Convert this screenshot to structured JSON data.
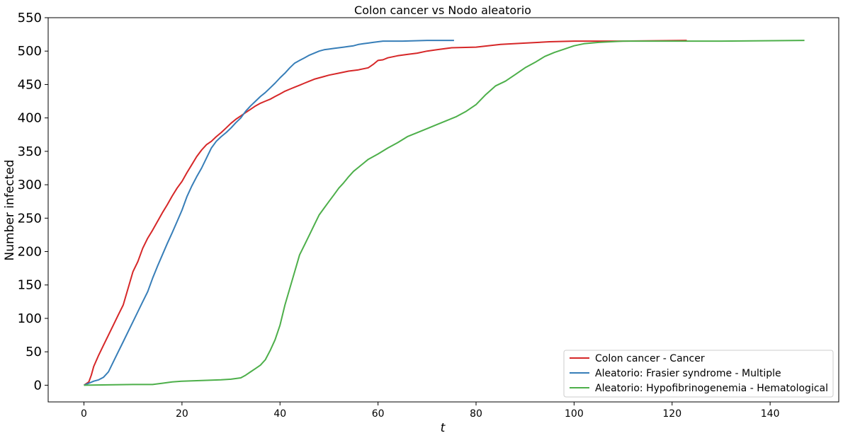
{
  "chart_data": {
    "type": "line",
    "title": "Colon cancer vs Nodo aleatorio",
    "xlabel": "t",
    "ylabel": "Number infected",
    "xlim": [
      -7.3,
      154
    ],
    "ylim": [
      -25,
      550
    ],
    "xticks": [
      0,
      20,
      40,
      60,
      80,
      100,
      120,
      140
    ],
    "yticks": [
      0,
      50,
      100,
      150,
      200,
      250,
      300,
      350,
      400,
      450,
      500,
      550
    ],
    "grid": false,
    "legend_position": "bottom-right",
    "series": [
      {
        "name": "Colon cancer - Cancer",
        "color": "#d62728",
        "x": [
          0,
          1,
          1.5,
          2,
          3,
          4,
          5,
          6,
          7,
          8,
          9,
          10,
          11,
          12,
          13,
          14,
          15,
          16,
          17,
          18,
          19,
          20,
          21,
          22,
          23,
          24,
          25,
          26,
          27,
          28,
          29,
          30,
          31,
          32,
          33,
          34,
          35,
          36,
          37,
          38,
          39,
          40,
          41,
          42,
          43,
          44,
          45,
          46,
          47,
          48,
          49,
          50,
          52,
          54,
          56,
          58,
          59,
          60,
          61,
          62,
          64,
          66,
          68,
          70,
          72,
          75,
          80,
          85,
          90,
          95,
          100,
          110,
          123
        ],
        "y": [
          0,
          5,
          15,
          28,
          45,
          60,
          75,
          90,
          105,
          120,
          145,
          170,
          185,
          205,
          220,
          232,
          245,
          258,
          270,
          283,
          295,
          305,
          318,
          330,
          342,
          352,
          360,
          365,
          372,
          378,
          385,
          392,
          398,
          403,
          408,
          413,
          418,
          422,
          425,
          428,
          432,
          436,
          440,
          443,
          446,
          449,
          452,
          455,
          458,
          460,
          462,
          464,
          467,
          470,
          472,
          475,
          480,
          486,
          487,
          490,
          493,
          495,
          497,
          500,
          502,
          505,
          506,
          510,
          512,
          514,
          515,
          515,
          516
        ]
      },
      {
        "name": "Aleatorio: Frasier syndrome - Multiple",
        "color": "#377eb8",
        "x": [
          0,
          1,
          2,
          3,
          4,
          5,
          6,
          7,
          8,
          9,
          10,
          11,
          12,
          13,
          14,
          15,
          16,
          17,
          18,
          19,
          20,
          21,
          22,
          23,
          24,
          25,
          26,
          27,
          28,
          29,
          30,
          31,
          32,
          33,
          34,
          35,
          36,
          37,
          38,
          39,
          40,
          41,
          42,
          43,
          44,
          45,
          46,
          47,
          48,
          49,
          50,
          51,
          52,
          53,
          54,
          55,
          56,
          57,
          58,
          59,
          60,
          61,
          65,
          70,
          75.5
        ],
        "y": [
          0,
          3,
          6,
          8,
          12,
          20,
          35,
          50,
          65,
          80,
          95,
          110,
          125,
          140,
          160,
          178,
          195,
          212,
          228,
          245,
          262,
          282,
          298,
          312,
          325,
          340,
          355,
          365,
          372,
          378,
          385,
          393,
          400,
          410,
          418,
          425,
          432,
          438,
          445,
          452,
          460,
          467,
          475,
          482,
          486,
          490,
          494,
          497,
          500,
          502,
          503,
          504,
          505,
          506,
          507,
          508,
          510,
          511,
          512,
          513,
          514,
          515,
          515,
          516,
          516
        ]
      },
      {
        "name": "Aleatorio: Hypofibrinogenemia - Hematological",
        "color": "#4daf4a",
        "x": [
          0,
          5,
          10,
          14,
          16,
          18,
          20,
          24,
          28,
          30,
          32,
          33,
          34,
          35,
          36,
          37,
          38,
          39,
          40,
          41,
          42,
          43,
          44,
          45,
          46,
          47,
          48,
          49,
          50,
          51,
          52,
          53,
          54,
          55,
          56,
          57,
          58,
          60,
          62,
          64,
          66,
          68,
          70,
          72,
          74,
          76,
          78,
          80,
          82,
          84,
          86,
          88,
          90,
          92,
          94,
          96,
          98,
          100,
          102,
          105,
          110,
          120,
          130,
          147
        ],
        "y": [
          0,
          0.5,
          1,
          1,
          3,
          5,
          6,
          7,
          8,
          9,
          11,
          15,
          20,
          25,
          30,
          38,
          52,
          68,
          90,
          120,
          145,
          170,
          195,
          210,
          225,
          240,
          255,
          265,
          275,
          285,
          295,
          303,
          312,
          320,
          326,
          332,
          338,
          346,
          355,
          363,
          372,
          378,
          384,
          390,
          396,
          402,
          410,
          420,
          435,
          448,
          455,
          465,
          475,
          483,
          492,
          498,
          503,
          508,
          511,
          513,
          515,
          515,
          515,
          516
        ]
      }
    ]
  }
}
